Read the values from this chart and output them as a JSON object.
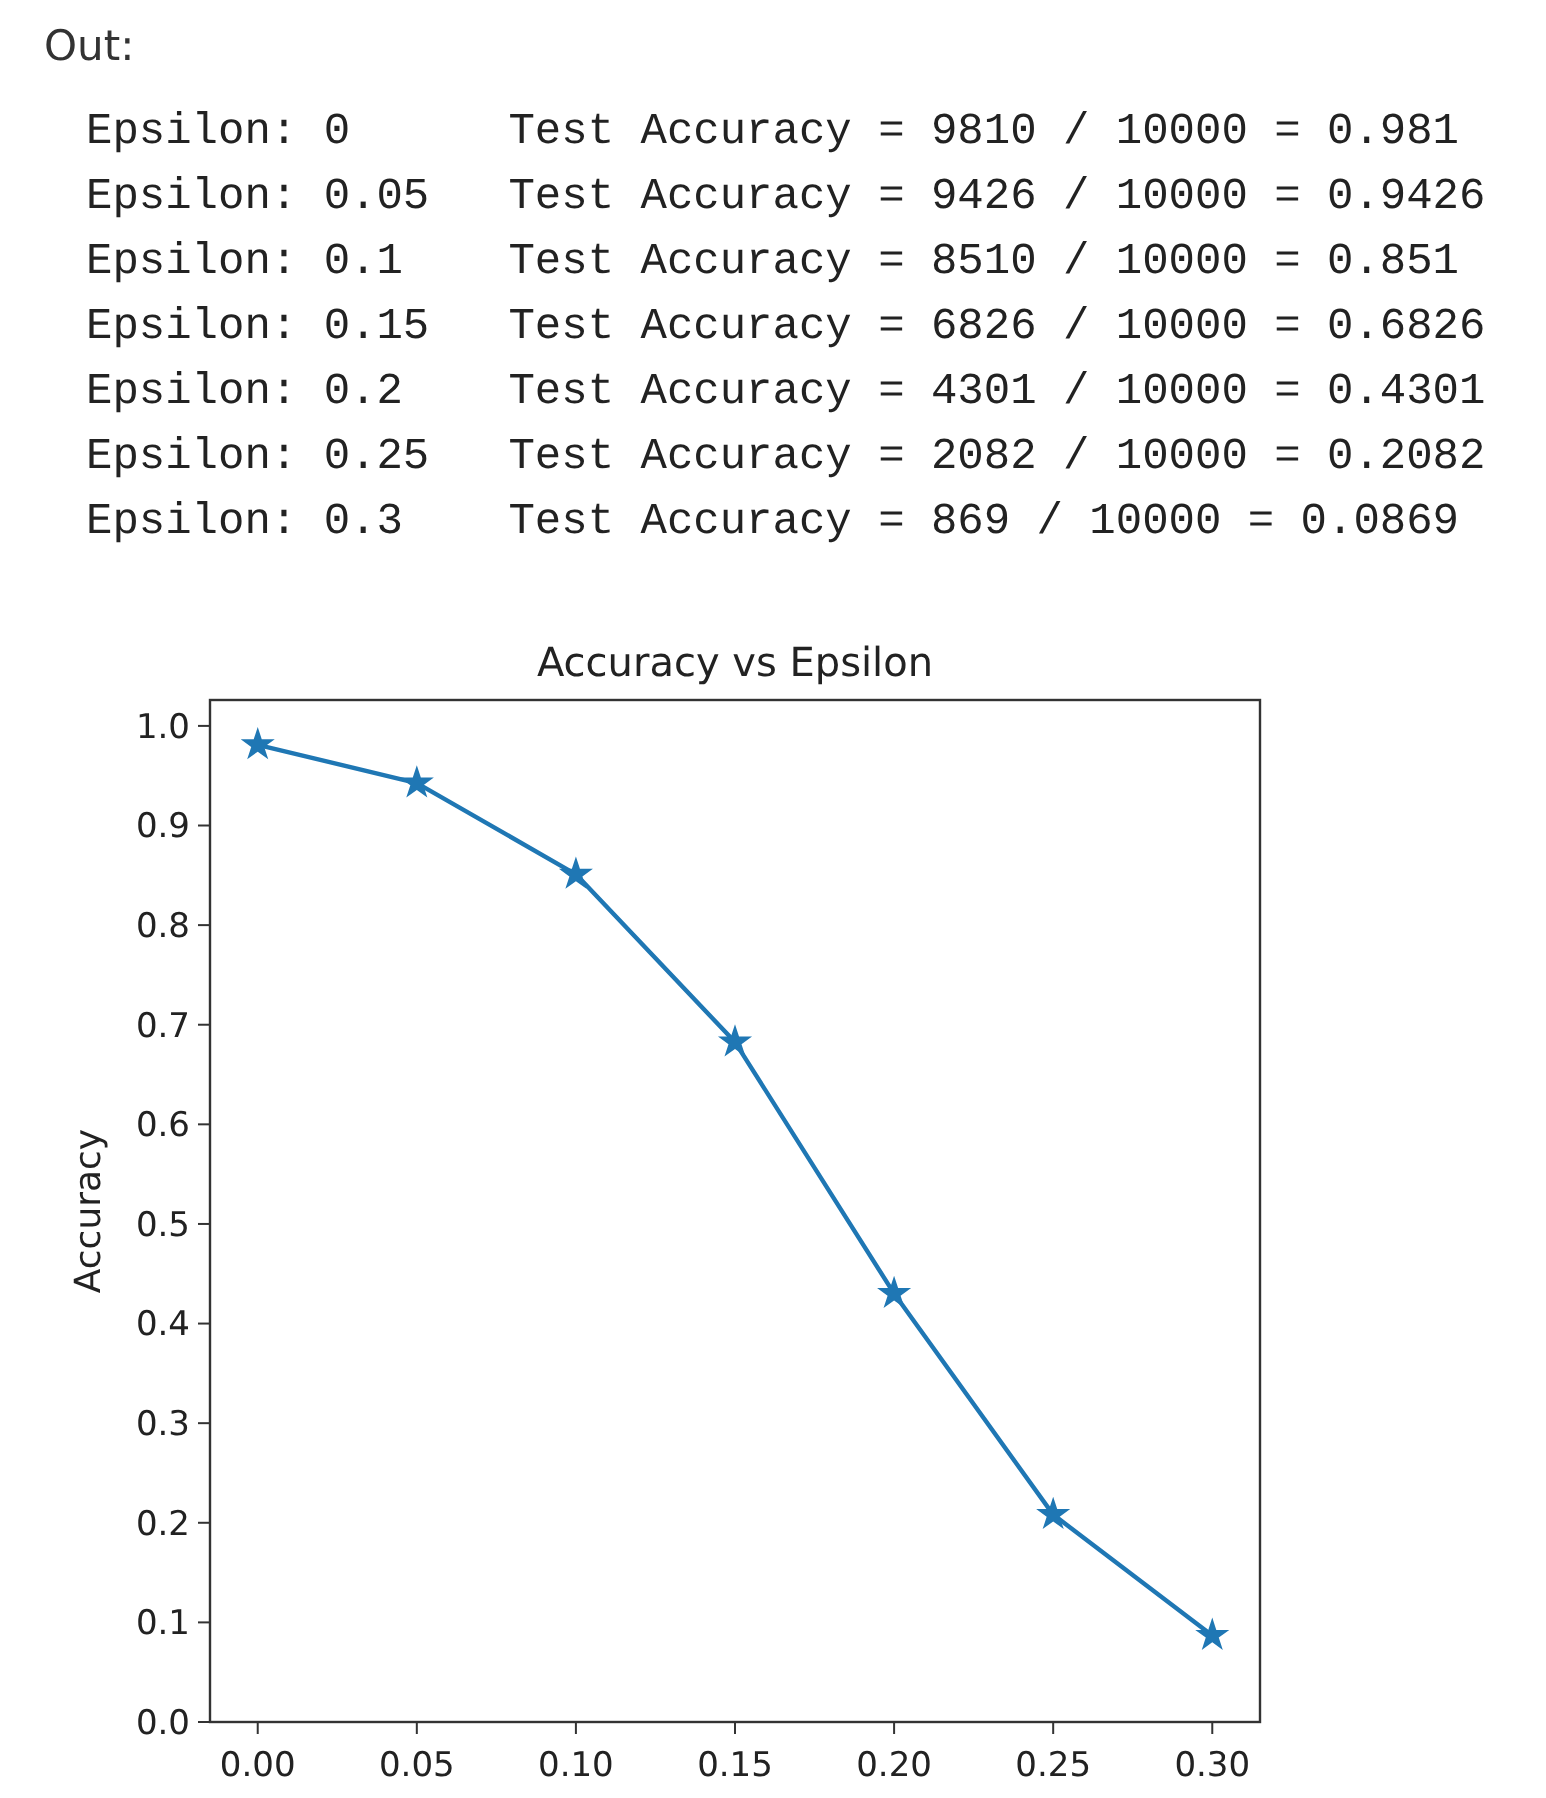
{
  "chart_data": {
    "type": "line",
    "title": "Accuracy vs Epsilon",
    "ylabel": "Accuracy",
    "x": [
      0,
      0.05,
      0.1,
      0.15,
      0.2,
      0.25,
      0.3
    ],
    "series": [
      {
        "color": "#1f77b4",
        "values": [
          0.981,
          0.9426,
          0.851,
          0.6826,
          0.4301,
          0.2082,
          0.0869
        ]
      }
    ],
    "xlim": [
      -0.015,
      0.315
    ],
    "ylim": [
      0,
      1.026
    ],
    "xticks": [
      {
        "value": 0,
        "label": "0.00"
      },
      {
        "value": 0.05,
        "label": "0.05"
      },
      {
        "value": 0.1,
        "label": "0.10"
      },
      {
        "value": 0.15,
        "label": "0.15"
      },
      {
        "value": 0.2,
        "label": "0.20"
      },
      {
        "value": 0.25,
        "label": "0.25"
      },
      {
        "value": 0.3,
        "label": "0.30"
      }
    ],
    "yticks": [
      {
        "value": 0,
        "label": "0.0"
      },
      {
        "value": 0.1,
        "label": "0.1"
      },
      {
        "value": 0.2,
        "label": "0.2"
      },
      {
        "value": 0.3,
        "label": "0.3"
      },
      {
        "value": 0.4,
        "label": "0.4"
      },
      {
        "value": 0.5,
        "label": "0.5"
      },
      {
        "value": 0.6,
        "label": "0.6"
      },
      {
        "value": 0.7,
        "label": "0.7"
      },
      {
        "value": 0.8,
        "label": "0.8"
      },
      {
        "value": 0.9,
        "label": "0.9"
      },
      {
        "value": 1,
        "label": "1.0"
      }
    ],
    "marker": "star",
    "line_style": "solid",
    "grid": false,
    "annotations": [
      "Out:",
      "Epsilon: 0      Test Accuracy = 9810 / 10000 = 0.981",
      "Epsilon: 0.05   Test Accuracy = 9426 / 10000 = 0.9426",
      "Epsilon: 0.1    Test Accuracy = 8510 / 10000 = 0.851",
      "Epsilon: 0.15   Test Accuracy = 6826 / 10000 = 0.6826",
      "Epsilon: 0.2    Test Accuracy = 4301 / 10000 = 0.4301",
      "Epsilon: 0.25   Test Accuracy = 2082 / 10000 = 0.2082",
      "Epsilon: 0.3    Test Accuracy = 869 / 10000 = 0.0869"
    ]
  }
}
